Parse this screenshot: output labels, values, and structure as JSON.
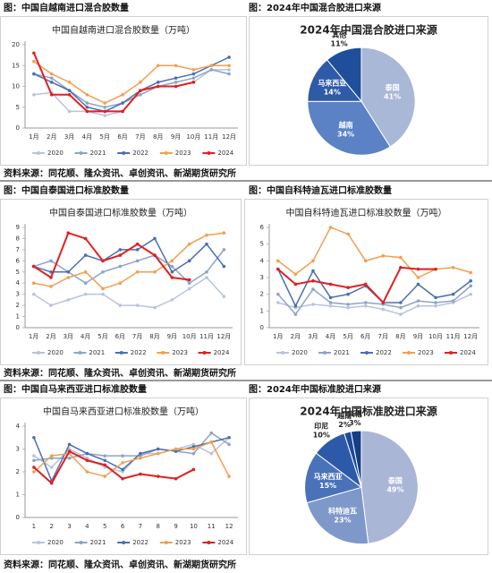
{
  "headers": [
    "图：中国自越南进口混合胶数量",
    "图：2024年中国混合胶进口来源",
    "图：中国自泰国进口标准胶数量",
    "图：中国自科特迪瓦进口标准胶数量",
    "图：中国自马来西亚进口标准胶数量",
    "图：2024年中国标准胶进口来源"
  ],
  "sources": [
    "资料来源：同花顺、隆众资讯、卓创资讯、新湖期货研究所",
    "资料来源：同花顺、隆众资讯、卓创资讯、新湖期货研究所",
    "资料来源：同花顺、隆众资讯、卓创资讯、新湖期货研究所"
  ],
  "chart_data": [
    {
      "type": "line",
      "title": "中国自越南进口混合胶数量（万吨）",
      "categories": [
        "1月",
        "2月",
        "3月",
        "4月",
        "5月",
        "6月",
        "7月",
        "8月",
        "9月",
        "10月",
        "11月",
        "12月"
      ],
      "ylim": [
        0,
        20
      ],
      "yticks": [
        0,
        5,
        10,
        15,
        20
      ],
      "grid": false,
      "series": [
        {
          "name": "2020",
          "color": "#b8c4dc",
          "values": [
            8,
            8.5,
            4,
            4,
            3,
            4,
            9,
            10,
            10,
            11,
            14,
            14
          ]
        },
        {
          "name": "2021",
          "color": "#8ea3c8",
          "values": [
            13,
            12,
            9,
            6,
            5,
            6,
            8,
            10,
            11,
            12,
            14,
            13
          ]
        },
        {
          "name": "2022",
          "color": "#4a6fb0",
          "values": [
            13,
            11,
            9,
            5,
            4,
            6,
            9,
            11,
            12,
            13,
            15,
            17
          ]
        },
        {
          "name": "2023",
          "color": "#f0a050",
          "values": [
            16,
            13,
            11,
            8,
            6,
            8,
            11,
            15,
            15,
            14,
            15,
            15
          ]
        },
        {
          "name": "2024",
          "color": "#e02020",
          "values": [
            18,
            8,
            8,
            4,
            4,
            4,
            9,
            10,
            10,
            11,
            null,
            null
          ]
        }
      ]
    },
    {
      "type": "pie",
      "title": "2024年中国混合胶进口来源",
      "categories": [
        "泰国",
        "越南",
        "马来西亚",
        "其他"
      ],
      "values": [
        41,
        34,
        14,
        11
      ],
      "value_labels": [
        "41%",
        "34%",
        "14%",
        "11%"
      ],
      "colors": [
        "#a9b8d6",
        "#5a82c4",
        "#2e5aa8",
        "#1f4e9a"
      ]
    },
    {
      "type": "line",
      "title": "中国自泰国进口标准胶数量（万吨）",
      "categories": [
        "1月",
        "2月",
        "3月",
        "4月",
        "5月",
        "6月",
        "7月",
        "8月",
        "9月",
        "10月",
        "11月",
        "12月"
      ],
      "ylim": [
        0,
        9
      ],
      "yticks": [
        0,
        1,
        2,
        3,
        4,
        5,
        6,
        7,
        8,
        9
      ],
      "grid": false,
      "series": [
        {
          "name": "2020",
          "color": "#b8c4dc",
          "values": [
            3,
            2,
            2.5,
            3,
            3,
            2,
            2,
            1.8,
            2.5,
            3.5,
            4.5,
            2.8
          ]
        },
        {
          "name": "2021",
          "color": "#8ea3c8",
          "values": [
            5.5,
            6,
            5,
            4,
            5,
            5.5,
            6,
            6.5,
            5.5,
            4,
            5,
            7
          ]
        },
        {
          "name": "2022",
          "color": "#4a6fb0",
          "values": [
            5.5,
            5,
            5,
            6.5,
            6,
            7,
            7,
            8,
            5,
            6,
            7.5,
            5.5
          ]
        },
        {
          "name": "2023",
          "color": "#f0a050",
          "values": [
            4,
            3.7,
            4.5,
            5,
            3.5,
            4,
            5,
            5,
            6,
            7.5,
            8.3,
            8.5
          ]
        },
        {
          "name": "2024",
          "color": "#e02020",
          "values": [
            5.5,
            4.5,
            8.5,
            8,
            6,
            6.5,
            7.5,
            6.5,
            4.5,
            4.3,
            null,
            null
          ]
        }
      ]
    },
    {
      "type": "line",
      "title": "中国自科特迪瓦进口标准胶数量（万吨）",
      "categories": [
        "1月",
        "2月",
        "3月",
        "4月",
        "5月",
        "6月",
        "7月",
        "8月",
        "9月",
        "10月",
        "11月",
        "12月"
      ],
      "ylim": [
        0,
        6
      ],
      "yticks": [
        0,
        1,
        2,
        3,
        4,
        5,
        6
      ],
      "grid": false,
      "series": [
        {
          "name": "2020",
          "color": "#b8c4dc",
          "values": [
            1.5,
            1.2,
            1.4,
            1.3,
            1.2,
            1.3,
            1.1,
            0.8,
            1.3,
            1.3,
            1.5,
            2
          ]
        },
        {
          "name": "2021",
          "color": "#8ea3c8",
          "values": [
            2,
            0.8,
            2.3,
            1.5,
            1.4,
            1.5,
            1.4,
            1.2,
            1.6,
            1.5,
            1.6,
            2.5
          ]
        },
        {
          "name": "2022",
          "color": "#4a6fb0",
          "values": [
            3.5,
            1.3,
            3.4,
            1.8,
            2,
            2.5,
            1.5,
            1.5,
            2.6,
            1.8,
            2,
            2.8
          ]
        },
        {
          "name": "2023",
          "color": "#f0a050",
          "values": [
            4,
            3.2,
            4,
            6,
            5.6,
            4,
            4.3,
            4.2,
            3,
            3.5,
            3.6,
            3.3
          ]
        },
        {
          "name": "2024",
          "color": "#e02020",
          "values": [
            3.5,
            2.6,
            2.8,
            2.6,
            2.4,
            2.6,
            1.5,
            3.6,
            3.5,
            3.5,
            null,
            null
          ]
        }
      ]
    },
    {
      "type": "line",
      "title": "中国自马来西亚进口标准胶数量（万吨）",
      "categories": [
        "1",
        "2",
        "3",
        "4",
        "5",
        "6",
        "7",
        "8",
        "9",
        "10",
        "11",
        "12"
      ],
      "ylim": [
        0,
        4
      ],
      "yticks": [
        0,
        1,
        2,
        3,
        4
      ],
      "grid": false,
      "series": [
        {
          "name": "2020",
          "color": "#b8c4dc",
          "values": [
            2.7,
            2.2,
            3,
            2.6,
            2.2,
            2,
            2.8,
            2.8,
            3,
            3.2,
            2.8,
            3.5
          ]
        },
        {
          "name": "2021",
          "color": "#8ea3c8",
          "values": [
            2.5,
            2.6,
            2.6,
            2.8,
            2.7,
            2.7,
            2.7,
            3,
            2.9,
            2.8,
            3.7,
            3.2
          ]
        },
        {
          "name": "2022",
          "color": "#4a6fb0",
          "values": [
            3.5,
            1.6,
            3.2,
            2.8,
            2.5,
            2.1,
            2.8,
            3,
            2.9,
            3.1,
            3.3,
            3.5
          ]
        },
        {
          "name": "2023",
          "color": "#f0a050",
          "values": [
            2,
            2.7,
            2.8,
            2,
            1.8,
            2.4,
            2.6,
            2.8,
            3,
            3,
            3.3,
            1.8
          ]
        },
        {
          "name": "2024",
          "color": "#e02020",
          "values": [
            2.2,
            1.5,
            2.9,
            2.5,
            2.3,
            1.7,
            1.9,
            1.8,
            1.7,
            2.1,
            null,
            null
          ]
        }
      ]
    },
    {
      "type": "pie",
      "title": "2024年中国标准胶进口来源",
      "categories": [
        "泰国",
        "科特迪瓦",
        "马来西亚",
        "印尼",
        "越南",
        "其他"
      ],
      "values": [
        49,
        23,
        15,
        10,
        2,
        3
      ],
      "value_labels": [
        "49%",
        "23%",
        "15%",
        "10%",
        "2%",
        "3%"
      ],
      "colors": [
        "#aab6d6",
        "#7e98c9",
        "#4a72b8",
        "#2d5aa8",
        "#1e4a98",
        "#163d85"
      ]
    }
  ]
}
